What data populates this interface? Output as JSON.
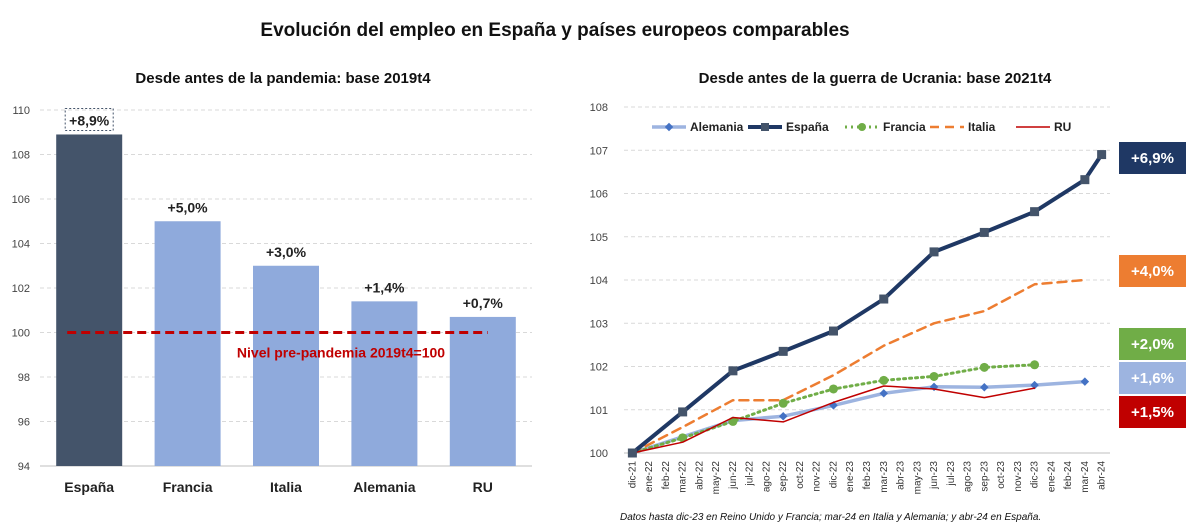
{
  "title": "Evolución del empleo en España y países europeos comparables",
  "note": "Datos hasta dic-23 en Reino Unido y Francia; mar-24 en Italia y Alemania; y abr-24 en España.",
  "colors": {
    "espana": "#1f3864",
    "espana_bar": "#44546a",
    "bar": "#8faadc",
    "alemania": "#9db4e0",
    "francia": "#70ad47",
    "italia": "#ed7d31",
    "ru": "#c00000",
    "reference": "#c00000"
  },
  "chart_data": [
    {
      "type": "bar",
      "title": "Desde antes de la pandemia: base 2019t4",
      "categories": [
        "España",
        "Francia",
        "Italia",
        "Alemania",
        "RU"
      ],
      "values": [
        108.9,
        105.0,
        103.0,
        101.4,
        100.7
      ],
      "data_labels": [
        "+8,9%",
        "+5,0%",
        "+3,0%",
        "+1,4%",
        "+0,7%"
      ],
      "ylim": [
        94,
        110
      ],
      "yticks": [
        94,
        96,
        98,
        100,
        102,
        104,
        106,
        108,
        110
      ],
      "grid": true,
      "reference_line": {
        "value": 100,
        "label": "Nivel pre-pandemia 2019t4=100"
      }
    },
    {
      "type": "line",
      "title": "Desde antes de la guerra de Ucrania: base 2021t4",
      "x": [
        "dic-21",
        "ene-22",
        "feb-22",
        "mar-22",
        "abr-22",
        "may-22",
        "jun-22",
        "jul-22",
        "ago-22",
        "sep-22",
        "oct-22",
        "nov-22",
        "dic-22",
        "ene-23",
        "feb-23",
        "mar-23",
        "abr-23",
        "may-23",
        "jun-23",
        "jul-23",
        "ago-23",
        "sep-23",
        "oct-23",
        "nov-23",
        "dic-23",
        "ene-24",
        "feb-24",
        "mar-24",
        "abr-24"
      ],
      "ylim": [
        100,
        108
      ],
      "yticks": [
        100,
        101,
        102,
        103,
        104,
        105,
        106,
        107,
        108
      ],
      "grid": true,
      "legend_position": "top",
      "series": [
        {
          "name": "Alemania",
          "color_key": "alemania",
          "marker": "diamond",
          "end_label": "+1,6%",
          "values": [
            100.0,
            null,
            null,
            null,
            null,
            null,
            100.75,
            null,
            null,
            100.85,
            null,
            null,
            101.1,
            null,
            null,
            101.38,
            null,
            null,
            101.53,
            null,
            null,
            101.52,
            null,
            null,
            101.57,
            null,
            null,
            101.65,
            null
          ]
        },
        {
          "name": "España",
          "color_key": "espana",
          "marker": "square",
          "end_label": "+6,9%",
          "values": [
            100.0,
            null,
            null,
            100.95,
            null,
            null,
            101.9,
            null,
            null,
            102.35,
            null,
            null,
            102.82,
            null,
            null,
            103.56,
            null,
            null,
            104.65,
            null,
            null,
            105.1,
            null,
            null,
            105.58,
            null,
            null,
            106.32,
            106.9
          ]
        },
        {
          "name": "Francia",
          "color_key": "francia",
          "marker": "circle",
          "end_label": "+2,0%",
          "values": [
            100.0,
            null,
            null,
            100.35,
            null,
            null,
            100.73,
            null,
            null,
            101.15,
            null,
            null,
            101.48,
            null,
            null,
            101.68,
            null,
            null,
            101.77,
            null,
            null,
            101.98,
            null,
            null,
            102.04,
            null,
            null,
            null,
            null
          ]
        },
        {
          "name": "Italia",
          "color_key": "italia",
          "marker": "none",
          "end_label": "+4,0%",
          "values": [
            100.0,
            null,
            null,
            100.6,
            null,
            null,
            101.22,
            null,
            null,
            101.22,
            null,
            null,
            101.8,
            null,
            null,
            102.48,
            null,
            null,
            103.0,
            null,
            null,
            103.28,
            null,
            null,
            103.9,
            null,
            null,
            104.0,
            null
          ]
        },
        {
          "name": "RU",
          "color_key": "ru",
          "marker": "none",
          "end_label": "+1,5%",
          "values": [
            100.0,
            null,
            null,
            100.25,
            null,
            null,
            100.82,
            null,
            null,
            100.72,
            null,
            null,
            101.17,
            null,
            null,
            101.55,
            null,
            null,
            101.48,
            null,
            null,
            101.28,
            null,
            null,
            101.5,
            null,
            null,
            null,
            null
          ]
        }
      ]
    }
  ]
}
